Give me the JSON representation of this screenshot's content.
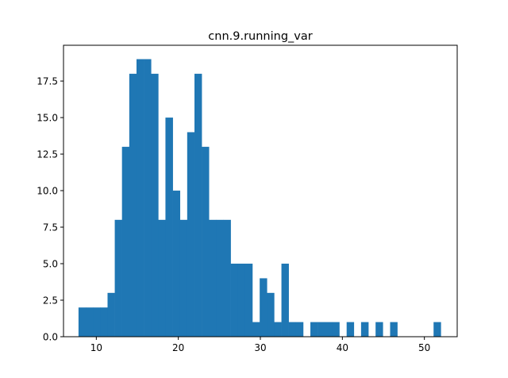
{
  "chart_data": {
    "type": "bar",
    "title": "cnn.9.running_var",
    "xlabel": "",
    "ylabel": "",
    "xlim": [
      6.0,
      54.0
    ],
    "ylim": [
      0,
      19.95
    ],
    "xticks": [
      10,
      20,
      30,
      40,
      50
    ],
    "yticks": [
      0.0,
      2.5,
      5.0,
      7.5,
      10.0,
      12.5,
      15.0,
      17.5
    ],
    "ytick_labels": [
      "0.0",
      "2.5",
      "5.0",
      "7.5",
      "10.0",
      "12.5",
      "15.0",
      "17.5"
    ],
    "bin_edges": [
      7.83,
      8.71,
      9.6,
      10.48,
      11.37,
      12.25,
      13.13,
      14.02,
      14.9,
      15.78,
      16.67,
      17.55,
      18.43,
      19.32,
      20.2,
      21.08,
      21.97,
      22.85,
      23.73,
      24.62,
      25.5,
      26.38,
      27.27,
      28.15,
      29.03,
      29.92,
      30.8,
      31.68,
      32.57,
      33.45,
      34.33,
      35.22,
      36.1,
      36.98,
      37.87,
      38.75,
      39.63,
      40.52,
      41.4,
      42.28,
      43.17,
      44.05,
      44.93,
      45.82,
      46.7,
      47.58,
      48.47,
      49.35,
      50.23,
      51.12,
      52.0
    ],
    "values": [
      2,
      2,
      2,
      2,
      3,
      8,
      13,
      18,
      19,
      19,
      18,
      8,
      15,
      10,
      8,
      14,
      18,
      13,
      8,
      8,
      8,
      5,
      5,
      5,
      1,
      4,
      3,
      1,
      5,
      1,
      1,
      0,
      1,
      1,
      1,
      1,
      0,
      1,
      0,
      1,
      0,
      1,
      0,
      1,
      0,
      0,
      0,
      0,
      0,
      1
    ],
    "bar_color": "#1f77b4",
    "grid": false
  }
}
